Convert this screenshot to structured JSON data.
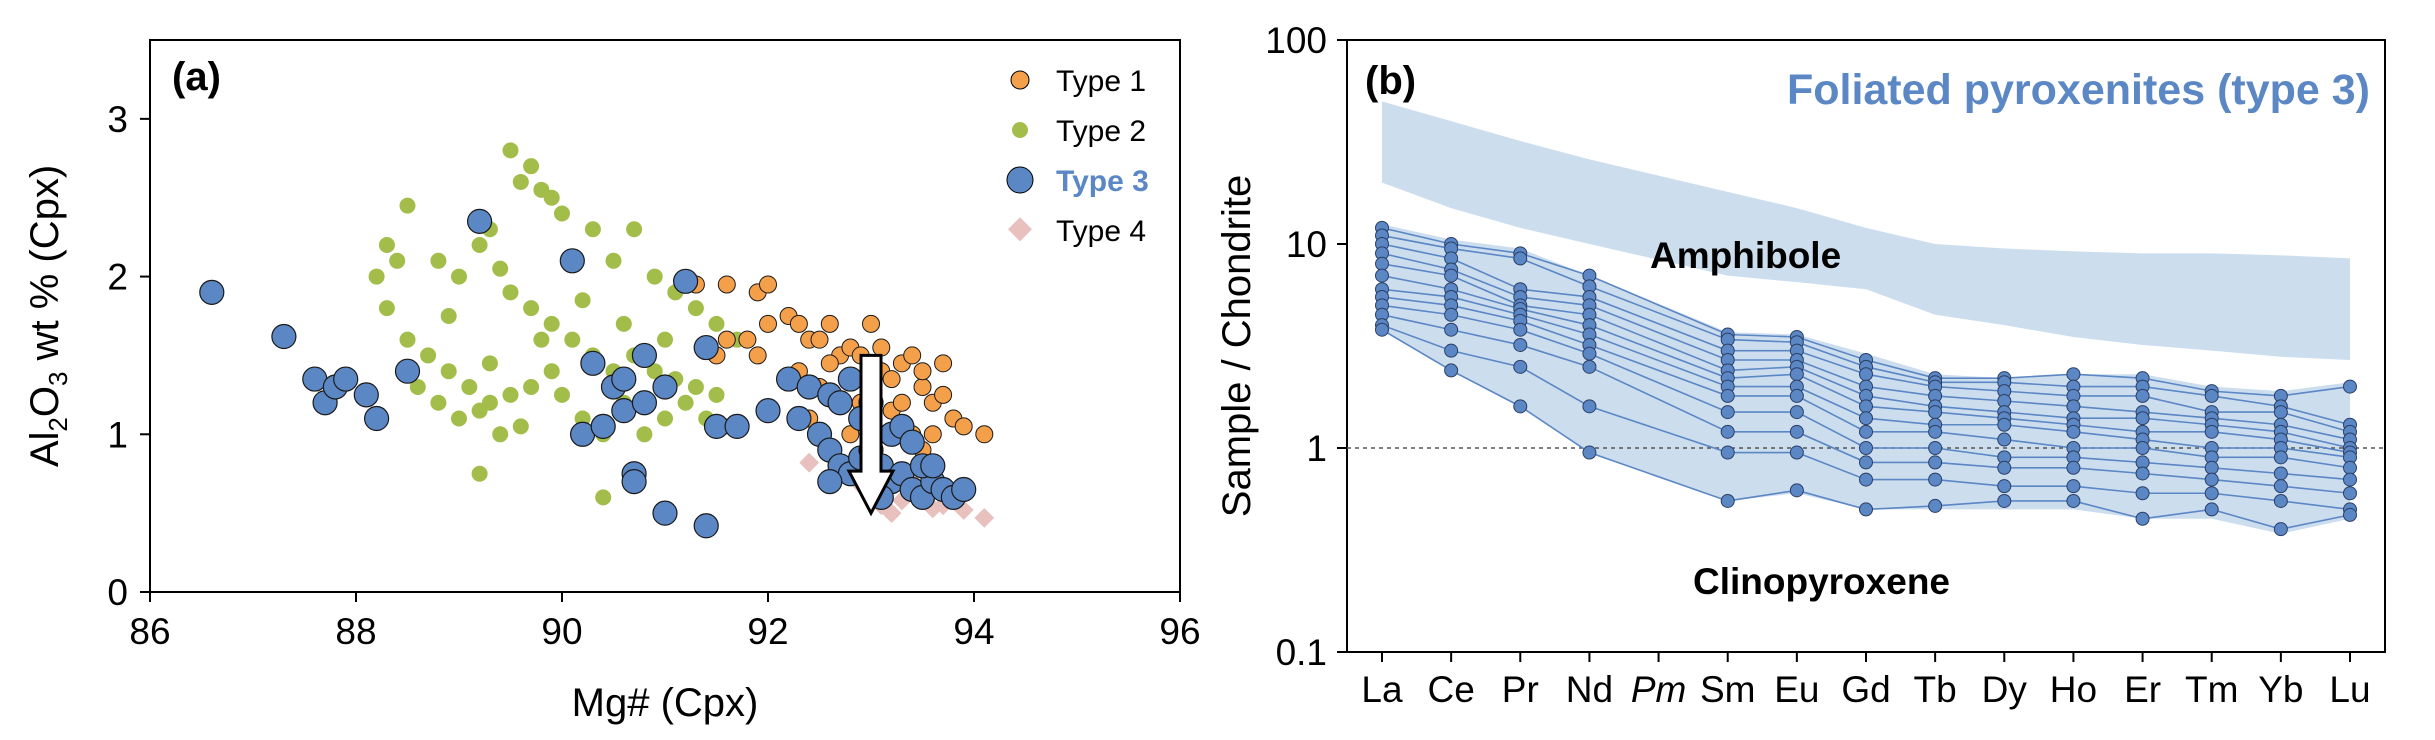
{
  "colors": {
    "type1": "#F4A04B",
    "type2": "#A3BD4B",
    "type3": "#5B87C5",
    "type4": "#E8C0BE",
    "band_amphibole": "#CCDDEE",
    "band_cpx": "#CCDDEE",
    "line_cpx": "#5B87C5"
  },
  "chart_data": [
    {
      "type": "scatter",
      "panel_label": "(a)",
      "xlabel": "Mg# (Cpx)",
      "ylabel_parts": [
        "Al",
        "2",
        "O",
        "3",
        " wt % (Cpx)"
      ],
      "xlim": [
        86,
        96
      ],
      "ylim": [
        0,
        3.5
      ],
      "xticks": [
        "86",
        "88",
        "90",
        "92",
        "94",
        "96"
      ],
      "yticks": [
        "0",
        "1",
        "2",
        "3"
      ],
      "grid": false,
      "legend_position": "top-right",
      "annotation": "downward arrow at Mg# 93.0 from Al2O3 1.5 to 0.5",
      "arrow": {
        "x": 93.0,
        "y_from": 1.5,
        "y_to": 0.5
      },
      "series": [
        {
          "name": "Type 1",
          "marker": "circle-small",
          "points": [
            [
              91.6,
              1.95
            ],
            [
              91.9,
              1.9
            ],
            [
              92.0,
              1.95
            ],
            [
              91.3,
              1.95
            ],
            [
              91.5,
              1.5
            ],
            [
              91.6,
              1.6
            ],
            [
              91.8,
              1.6
            ],
            [
              91.9,
              1.5
            ],
            [
              92.0,
              1.7
            ],
            [
              92.2,
              1.75
            ],
            [
              92.3,
              1.7
            ],
            [
              92.4,
              1.6
            ],
            [
              92.5,
              1.6
            ],
            [
              92.6,
              1.7
            ],
            [
              92.7,
              1.5
            ],
            [
              92.8,
              1.55
            ],
            [
              92.9,
              1.5
            ],
            [
              93.0,
              1.7
            ],
            [
              93.1,
              1.4
            ],
            [
              93.2,
              1.35
            ],
            [
              93.3,
              1.45
            ],
            [
              93.4,
              1.5
            ],
            [
              93.5,
              1.3
            ],
            [
              93.6,
              1.2
            ],
            [
              93.7,
              1.25
            ],
            [
              93.8,
              1.1
            ],
            [
              93.9,
              1.05
            ],
            [
              94.1,
              1.0
            ],
            [
              92.3,
              1.4
            ],
            [
              92.5,
              1.3
            ],
            [
              92.7,
              1.2
            ],
            [
              92.9,
              1.2
            ],
            [
              93.0,
              1.1
            ],
            [
              93.2,
              1.15
            ],
            [
              93.4,
              1.0
            ],
            [
              93.6,
              1.0
            ],
            [
              93.3,
              1.2
            ],
            [
              93.5,
              1.4
            ],
            [
              93.1,
              1.55
            ],
            [
              92.6,
              1.45
            ],
            [
              92.8,
              1.0
            ],
            [
              93.5,
              0.9
            ],
            [
              92.4,
              1.1
            ],
            [
              93.7,
              1.45
            ]
          ]
        },
        {
          "name": "Type 2",
          "marker": "circle-small",
          "points": [
            [
              89.5,
              2.8
            ],
            [
              89.7,
              2.7
            ],
            [
              89.6,
              2.6
            ],
            [
              89.8,
              2.55
            ],
            [
              89.9,
              2.5
            ],
            [
              90.0,
              2.4
            ],
            [
              89.3,
              2.3
            ],
            [
              88.5,
              2.45
            ],
            [
              88.3,
              2.2
            ],
            [
              88.4,
              2.1
            ],
            [
              88.2,
              2.0
            ],
            [
              88.8,
              2.1
            ],
            [
              89.0,
              2.0
            ],
            [
              89.2,
              2.2
            ],
            [
              89.4,
              2.05
            ],
            [
              90.3,
              2.3
            ],
            [
              90.5,
              2.1
            ],
            [
              90.7,
              2.3
            ],
            [
              90.9,
              2.0
            ],
            [
              91.1,
              1.9
            ],
            [
              91.3,
              1.8
            ],
            [
              91.5,
              1.7
            ],
            [
              91.7,
              1.6
            ],
            [
              89.5,
              1.9
            ],
            [
              89.7,
              1.8
            ],
            [
              89.9,
              1.7
            ],
            [
              90.1,
              1.6
            ],
            [
              90.3,
              1.5
            ],
            [
              90.5,
              1.4
            ],
            [
              90.7,
              1.5
            ],
            [
              90.9,
              1.4
            ],
            [
              91.1,
              1.35
            ],
            [
              91.3,
              1.3
            ],
            [
              91.5,
              1.25
            ],
            [
              88.5,
              1.6
            ],
            [
              88.7,
              1.5
            ],
            [
              88.9,
              1.4
            ],
            [
              89.1,
              1.3
            ],
            [
              89.3,
              1.2
            ],
            [
              89.5,
              1.25
            ],
            [
              89.7,
              1.3
            ],
            [
              89.9,
              1.4
            ],
            [
              88.6,
              1.3
            ],
            [
              88.8,
              1.2
            ],
            [
              89.0,
              1.1
            ],
            [
              89.2,
              1.15
            ],
            [
              89.4,
              1.0
            ],
            [
              89.6,
              1.05
            ],
            [
              90.2,
              1.1
            ],
            [
              90.4,
              1.0
            ],
            [
              90.6,
              1.2
            ],
            [
              90.8,
              1.0
            ],
            [
              91.0,
              1.1
            ],
            [
              91.2,
              1.2
            ],
            [
              91.4,
              1.1
            ],
            [
              91.6,
              1.05
            ],
            [
              89.2,
              0.75
            ],
            [
              90.4,
              0.6
            ],
            [
              88.3,
              1.8
            ],
            [
              89.8,
              1.6
            ],
            [
              90.0,
              1.25
            ],
            [
              91.0,
              1.6
            ],
            [
              90.6,
              1.7
            ],
            [
              89.3,
              1.45
            ],
            [
              88.9,
              1.75
            ],
            [
              90.2,
              1.85
            ],
            [
              91.4,
              1.55
            ]
          ]
        },
        {
          "name": "Type 3",
          "marker": "circle-large",
          "points": [
            [
              86.6,
              1.9
            ],
            [
              87.3,
              1.62
            ],
            [
              87.6,
              1.35
            ],
            [
              87.7,
              1.2
            ],
            [
              87.8,
              1.3
            ],
            [
              87.9,
              1.35
            ],
            [
              88.1,
              1.25
            ],
            [
              88.2,
              1.1
            ],
            [
              88.5,
              1.4
            ],
            [
              89.2,
              2.35
            ],
            [
              90.1,
              2.1
            ],
            [
              91.2,
              1.97
            ],
            [
              91.4,
              1.55
            ],
            [
              90.3,
              1.45
            ],
            [
              90.5,
              1.3
            ],
            [
              90.6,
              1.35
            ],
            [
              90.8,
              1.5
            ],
            [
              90.2,
              1.0
            ],
            [
              90.4,
              1.05
            ],
            [
              90.6,
              1.15
            ],
            [
              90.7,
              0.75
            ],
            [
              90.7,
              0.7
            ],
            [
              91.0,
              0.5
            ],
            [
              91.4,
              0.42
            ],
            [
              90.8,
              1.2
            ],
            [
              91.0,
              1.3
            ],
            [
              91.5,
              1.05
            ],
            [
              91.7,
              1.05
            ],
            [
              92.0,
              1.15
            ],
            [
              92.2,
              1.35
            ],
            [
              92.3,
              1.1
            ],
            [
              92.4,
              1.3
            ],
            [
              92.5,
              1.0
            ],
            [
              92.6,
              1.25
            ],
            [
              92.7,
              1.2
            ],
            [
              92.8,
              1.35
            ],
            [
              92.9,
              1.1
            ],
            [
              92.6,
              0.9
            ],
            [
              92.7,
              0.8
            ],
            [
              92.8,
              0.75
            ],
            [
              92.9,
              0.85
            ],
            [
              93.0,
              0.9
            ],
            [
              93.1,
              0.8
            ],
            [
              93.2,
              0.7
            ],
            [
              93.3,
              0.75
            ],
            [
              93.4,
              0.65
            ],
            [
              93.5,
              0.6
            ],
            [
              93.6,
              0.7
            ],
            [
              93.7,
              0.65
            ],
            [
              93.8,
              0.6
            ],
            [
              93.9,
              0.65
            ],
            [
              93.2,
              1.0
            ],
            [
              93.3,
              1.05
            ],
            [
              93.4,
              0.95
            ],
            [
              93.5,
              0.8
            ],
            [
              92.6,
              0.7
            ],
            [
              93.0,
              1.2
            ],
            [
              93.6,
              0.8
            ],
            [
              93.1,
              0.6
            ]
          ]
        },
        {
          "name": "Type 4",
          "marker": "diamond",
          "points": [
            [
              92.4,
              0.82
            ],
            [
              92.7,
              0.75
            ],
            [
              92.9,
              0.68
            ],
            [
              93.1,
              0.55
            ],
            [
              93.3,
              0.58
            ],
            [
              93.5,
              0.62
            ],
            [
              93.7,
              0.55
            ],
            [
              93.9,
              0.52
            ],
            [
              94.1,
              0.47
            ],
            [
              93.2,
              0.5
            ],
            [
              93.6,
              0.53
            ],
            [
              93.4,
              0.7
            ]
          ]
        }
      ]
    },
    {
      "type": "line",
      "panel_label": "(b)",
      "title": "Foliated pyroxenites (type 3)",
      "ylabel": "Sample / Chondrite",
      "yscale": "log",
      "ylim": [
        0.1,
        100
      ],
      "yticks": [
        "0.1",
        "1",
        "10",
        "100"
      ],
      "reference_line": 1,
      "categories": [
        "La",
        "Ce",
        "Pr",
        "Nd",
        "Pm",
        "Sm",
        "Eu",
        "Gd",
        "Tb",
        "Dy",
        "Ho",
        "Er",
        "Tm",
        "Yb",
        "Lu"
      ],
      "italic_categories": [
        "Pm"
      ],
      "band_labels": {
        "amphibole": "Amphibole",
        "clinopyroxene": "Clinopyroxene"
      },
      "amphibole_band": {
        "upper": [
          50,
          40,
          32,
          26,
          null,
          18,
          15,
          12,
          10,
          9.5,
          9.2,
          9,
          9,
          8.8,
          8.5
        ],
        "lower": [
          20,
          15,
          12,
          10,
          null,
          7,
          6.5,
          6,
          4.5,
          4,
          3.5,
          3.2,
          3,
          2.8,
          2.7
        ]
      },
      "cpx_band": {
        "upper": [
          12.5,
          10.5,
          9.5,
          7,
          null,
          3.7,
          3.6,
          2.9,
          2.3,
          2.2,
          2.3,
          2.3,
          2.0,
          1.9,
          2.1
        ],
        "lower": [
          3.8,
          2.4,
          1.6,
          0.95,
          null,
          0.55,
          0.6,
          0.5,
          0.5,
          0.5,
          0.5,
          0.45,
          0.45,
          0.38,
          0.45
        ]
      },
      "series": [
        {
          "values": [
            12,
            10,
            9,
            7,
            null,
            3.6,
            3.5,
            2.7,
            2.2,
            2.2,
            2.3,
            2.2,
            1.9,
            1.8,
            2.0
          ]
        },
        {
          "values": [
            11,
            9.5,
            8.5,
            6.2,
            null,
            3.4,
            3.3,
            2.5,
            2.1,
            2.1,
            2.0,
            2.0,
            1.8,
            1.6,
            1.3
          ]
        },
        {
          "values": [
            10,
            8.5,
            6,
            5.5,
            null,
            3.0,
            3.0,
            2.3,
            2.0,
            1.9,
            1.8,
            1.8,
            1.5,
            1.5,
            1.2
          ]
        },
        {
          "values": [
            9,
            7.5,
            5.5,
            5.0,
            null,
            2.7,
            2.7,
            2.0,
            1.8,
            1.7,
            1.6,
            1.5,
            1.4,
            1.3,
            1.1
          ]
        },
        {
          "values": [
            8,
            7,
            5,
            4.5,
            null,
            2.4,
            2.5,
            1.8,
            1.6,
            1.5,
            1.4,
            1.4,
            1.3,
            1.2,
            1.0
          ]
        },
        {
          "values": [
            7,
            6,
            4.8,
            4.0,
            null,
            2.2,
            2.3,
            1.6,
            1.5,
            1.4,
            1.3,
            1.2,
            1.2,
            1.1,
            0.95
          ]
        },
        {
          "values": [
            6,
            5.5,
            4.5,
            3.6,
            null,
            2.0,
            2.0,
            1.4,
            1.3,
            1.3,
            1.2,
            1.1,
            1.0,
            1.0,
            0.9
          ]
        },
        {
          "values": [
            5.5,
            5,
            4.2,
            3.2,
            null,
            1.8,
            1.8,
            1.2,
            1.2,
            1.1,
            1.0,
            1.0,
            0.9,
            0.9,
            0.8
          ]
        },
        {
          "values": [
            5,
            4.5,
            3.8,
            2.9,
            null,
            1.5,
            1.5,
            1.0,
            1.0,
            0.9,
            0.9,
            0.85,
            0.8,
            0.75,
            0.7
          ]
        },
        {
          "values": [
            4.5,
            3.8,
            3.2,
            2.5,
            null,
            1.2,
            1.2,
            0.85,
            0.85,
            0.8,
            0.8,
            0.75,
            0.7,
            0.65,
            0.6
          ]
        },
        {
          "values": [
            4,
            3,
            2.5,
            1.6,
            null,
            0.95,
            0.95,
            0.7,
            0.7,
            0.65,
            0.65,
            0.6,
            0.6,
            0.55,
            0.5
          ]
        },
        {
          "values": [
            3.8,
            2.4,
            1.6,
            0.95,
            null,
            0.55,
            0.62,
            0.5,
            0.52,
            0.55,
            0.55,
            0.45,
            0.5,
            0.4,
            0.47
          ]
        }
      ]
    }
  ]
}
